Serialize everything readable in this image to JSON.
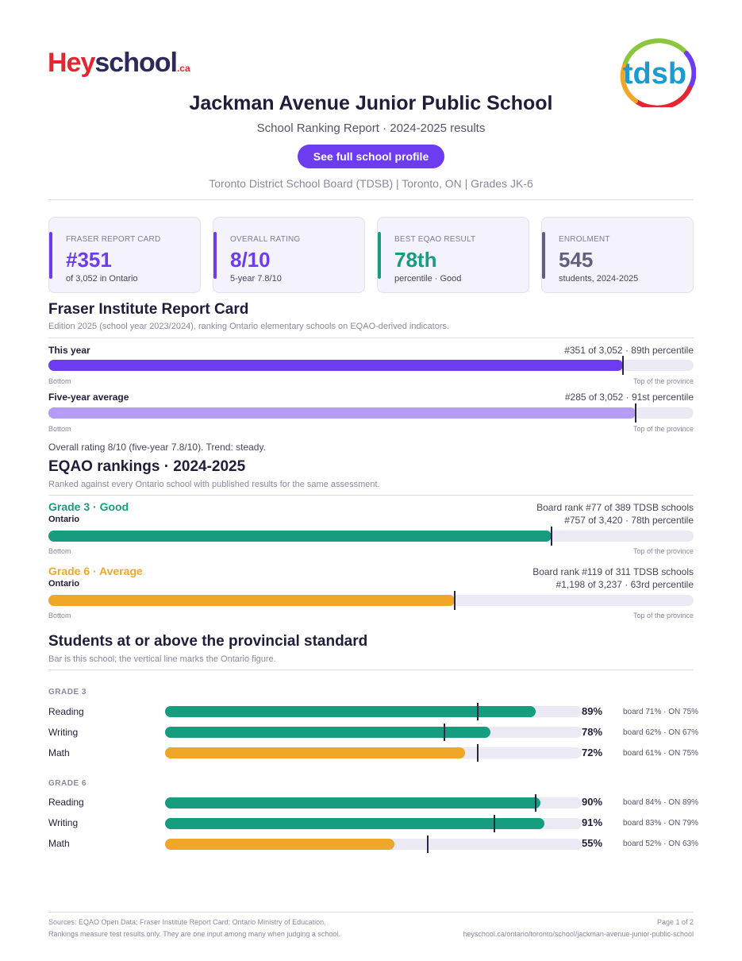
{
  "header": {
    "logo": {
      "hey": "Hey",
      "school": "school",
      "tld": ".ca"
    },
    "board_logo": "tdsb",
    "title": "Jackman Avenue Junior Public School",
    "subtitle": "School Ranking Report  ·  2024-2025 results",
    "profile_button": "See full school profile",
    "meta": "Toronto District School Board (TDSB)  |  Toronto, ON  |  Grades JK-6"
  },
  "cards": [
    {
      "label": "FRASER REPORT CARD",
      "value": "#351",
      "note": "of 3,052 in Ontario",
      "color": "#6d3cf0"
    },
    {
      "label": "OVERALL RATING",
      "value": "8/10",
      "note": "5-year 7.8/10",
      "color": "#6d3cf0"
    },
    {
      "label": "BEST EQAO RESULT",
      "value": "78th",
      "note": "percentile  ·  Good",
      "color": "#169c7e"
    },
    {
      "label": "ENROLMENT",
      "value": "545",
      "note": "students, 2024-2025",
      "color": "#625e80"
    }
  ],
  "fraser": {
    "heading": "Fraser Institute Report Card",
    "description": "Edition 2025 (school year 2023/2024), ranking Ontario elementary schools on EQAO-derived indicators.",
    "rows": [
      {
        "label": "This year",
        "right": "#351 of 3,052  ·  89th percentile",
        "percentile": 89,
        "color": "#6d3cf0",
        "left_axis": "Bottom",
        "right_axis": "Top of the province"
      },
      {
        "label": "Five-year average",
        "right": "#285 of 3,052  ·  91st percentile",
        "percentile": 91,
        "color": "#b59cf7",
        "left_axis": "Bottom",
        "right_axis": "Top of the province"
      }
    ],
    "summary": "Overall rating 8/10 (five-year 7.8/10). Trend: steady."
  },
  "eqao": {
    "heading": "EQAO rankings  ·  2024-2025",
    "description": "Ranked against every Ontario school with published results for the same assessment.",
    "rows": [
      {
        "grade_label": "Grade 3  ·  Good",
        "grade_color": "#169c7e",
        "board_rank": "Board rank #77 of 389 TDSB schools",
        "scope": "Ontario",
        "right": "#757 of 3,420  ·  78th percentile",
        "percentile": 78,
        "color": "#169c7e",
        "left_axis": "Bottom",
        "right_axis": "Top of the province"
      },
      {
        "grade_label": "Grade 6  ·  Average",
        "grade_color": "#f0a727",
        "board_rank": "Board rank #119 of 311 TDSB schools",
        "scope": "Ontario",
        "right": "#1,198 of 3,237  ·  63rd percentile",
        "percentile": 63,
        "color": "#f0a727",
        "left_axis": "Bottom",
        "right_axis": "Top of the province"
      }
    ]
  },
  "standards": {
    "heading": "Students at or above the provincial standard",
    "description": "Bar is this school; the vertical line marks the Ontario figure.",
    "grades": [
      {
        "title": "GRADE 3",
        "subjects": [
          {
            "name": "Reading",
            "pct_label": "89%",
            "value": 89,
            "ontario": 75,
            "compare": "board 71%  ·  ON 75%",
            "color": "#169c7e"
          },
          {
            "name": "Writing",
            "pct_label": "78%",
            "value": 78,
            "ontario": 67,
            "compare": "board 62%  ·  ON 67%",
            "color": "#169c7e"
          },
          {
            "name": "Math",
            "pct_label": "72%",
            "value": 72,
            "ontario": 75,
            "compare": "board 61%  ·  ON 75%",
            "color": "#f0a727"
          }
        ]
      },
      {
        "title": "GRADE 6",
        "subjects": [
          {
            "name": "Reading",
            "pct_label": "90%",
            "value": 90,
            "ontario": 89,
            "compare": "board 84%  ·  ON 89%",
            "color": "#169c7e"
          },
          {
            "name": "Writing",
            "pct_label": "91%",
            "value": 91,
            "ontario": 79,
            "compare": "board 83%  ·  ON 79%",
            "color": "#169c7e"
          },
          {
            "name": "Math",
            "pct_label": "55%",
            "value": 55,
            "ontario": 63,
            "compare": "board 52%  ·  ON 63%",
            "color": "#f0a727"
          }
        ]
      }
    ]
  },
  "footer": {
    "sources": "Sources: EQAO Open Data; Fraser Institute Report Card; Ontario Ministry of Education.",
    "disclaimer": "Rankings measure test results only. They are one input among many when judging a school.",
    "page": "Page 1 of 2",
    "url": "heyschool.ca/ontario/toronto/school/jackman-avenue-junior-public-school"
  }
}
